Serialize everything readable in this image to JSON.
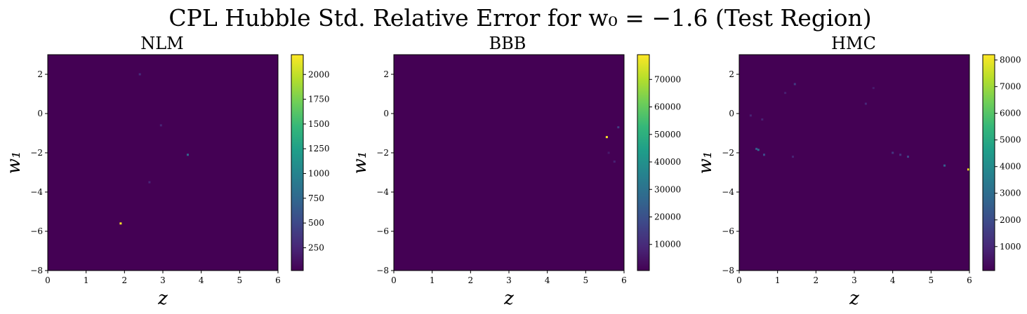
{
  "figure": {
    "title": "CPL Hubble Std. Relative Error for w₀ = −1.6 (Test Region)"
  },
  "colors": {
    "background_low": "#440154",
    "viridis": [
      "#440154",
      "#482878",
      "#3e4989",
      "#31688e",
      "#26828e",
      "#1f9e89",
      "#35b779",
      "#6ece58",
      "#b5de2b",
      "#fde725"
    ]
  },
  "chart_data": [
    {
      "type": "heatmap",
      "title": "NLM",
      "xlabel": "z",
      "ylabel": "w₁",
      "xlim": [
        0,
        6
      ],
      "ylim": [
        -8,
        3
      ],
      "xticks": [
        "0",
        "1",
        "2",
        "3",
        "4",
        "5",
        "6"
      ],
      "yticks": [
        "−8",
        "−6",
        "−4",
        "−2",
        "0",
        "2"
      ],
      "xtick_values": [
        0,
        1,
        2,
        3,
        4,
        5,
        6
      ],
      "ytick_values": [
        -8,
        -6,
        -4,
        -2,
        0,
        2
      ],
      "clim": [
        20,
        2200
      ],
      "colorbar_ticks": [
        "250",
        "500",
        "750",
        "1000",
        "1250",
        "1500",
        "1750",
        "2000"
      ],
      "colorbar_values": [
        250,
        500,
        750,
        1000,
        1250,
        1500,
        1750,
        2000
      ],
      "points": [
        {
          "x": 1.9,
          "y": -5.6,
          "v": 2200
        },
        {
          "x": 3.65,
          "y": -2.1,
          "v": 750
        },
        {
          "x": 2.4,
          "y": 2.0,
          "v": 300
        },
        {
          "x": 2.95,
          "y": -0.6,
          "v": 250
        },
        {
          "x": 2.65,
          "y": -3.5,
          "v": 250
        }
      ]
    },
    {
      "type": "heatmap",
      "title": "BBB",
      "xlabel": "z",
      "ylabel": "w₁",
      "xlim": [
        0,
        6
      ],
      "ylim": [
        -8,
        3
      ],
      "xticks": [
        "0",
        "1",
        "2",
        "3",
        "4",
        "5",
        "6"
      ],
      "yticks": [
        "−8",
        "−6",
        "−4",
        "−2",
        "0",
        "2"
      ],
      "xtick_values": [
        0,
        1,
        2,
        3,
        4,
        5,
        6
      ],
      "ytick_values": [
        -8,
        -6,
        -4,
        -2,
        0,
        2
      ],
      "clim": [
        500,
        79000
      ],
      "colorbar_ticks": [
        "10000",
        "20000",
        "30000",
        "40000",
        "50000",
        "60000",
        "70000"
      ],
      "colorbar_values": [
        10000,
        20000,
        30000,
        40000,
        50000,
        60000,
        70000
      ],
      "points": [
        {
          "x": 5.55,
          "y": -1.2,
          "v": 79000
        },
        {
          "x": 5.85,
          "y": -0.7,
          "v": 15000
        },
        {
          "x": 5.75,
          "y": -2.45,
          "v": 8000
        },
        {
          "x": 5.6,
          "y": -2.0,
          "v": 6000
        }
      ]
    },
    {
      "type": "heatmap",
      "title": "HMC",
      "xlabel": "z",
      "ylabel": "w₁",
      "xlim": [
        0,
        6
      ],
      "ylim": [
        -8,
        3
      ],
      "xticks": [
        "0",
        "1",
        "2",
        "3",
        "4",
        "5",
        "6"
      ],
      "yticks": [
        "−8",
        "−6",
        "−4",
        "−2",
        "0",
        "2"
      ],
      "xtick_values": [
        0,
        1,
        2,
        3,
        4,
        5,
        6
      ],
      "ytick_values": [
        -8,
        -6,
        -4,
        -2,
        0,
        2
      ],
      "clim": [
        100,
        8200
      ],
      "colorbar_ticks": [
        "1000",
        "2000",
        "3000",
        "4000",
        "5000",
        "6000",
        "7000",
        "8000"
      ],
      "colorbar_values": [
        1000,
        2000,
        3000,
        4000,
        5000,
        6000,
        7000,
        8000
      ],
      "points": [
        {
          "x": 6.0,
          "y": -2.85,
          "v": 8200
        },
        {
          "x": 0.5,
          "y": -1.85,
          "v": 3000
        },
        {
          "x": 0.45,
          "y": -1.8,
          "v": 2400
        },
        {
          "x": 0.65,
          "y": -2.1,
          "v": 2000
        },
        {
          "x": 5.35,
          "y": -2.65,
          "v": 2500
        },
        {
          "x": 4.4,
          "y": -2.2,
          "v": 1800
        },
        {
          "x": 4.0,
          "y": -2.0,
          "v": 1400
        },
        {
          "x": 4.2,
          "y": -2.1,
          "v": 1300
        },
        {
          "x": 1.45,
          "y": 1.5,
          "v": 1500
        },
        {
          "x": 3.3,
          "y": 0.5,
          "v": 1000
        },
        {
          "x": 0.3,
          "y": -0.1,
          "v": 900
        },
        {
          "x": 0.6,
          "y": -0.3,
          "v": 900
        },
        {
          "x": 1.2,
          "y": 1.05,
          "v": 800
        },
        {
          "x": 1.4,
          "y": -2.2,
          "v": 900
        },
        {
          "x": 3.5,
          "y": 1.3,
          "v": 700
        }
      ]
    }
  ]
}
